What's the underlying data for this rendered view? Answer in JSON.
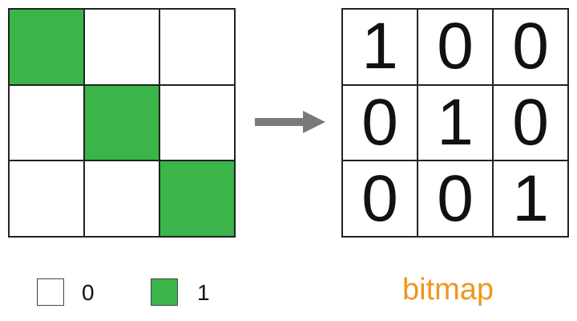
{
  "colors": {
    "on": "#3bb54a",
    "off": "#ffffff",
    "caption": "#f0961e",
    "arrow": "#7a7a7a"
  },
  "grid": [
    [
      1,
      0,
      0
    ],
    [
      0,
      1,
      0
    ],
    [
      0,
      0,
      1
    ]
  ],
  "bitmap": [
    [
      "1",
      "0",
      "0"
    ],
    [
      "0",
      "1",
      "0"
    ],
    [
      "0",
      "0",
      "1"
    ]
  ],
  "legend": [
    {
      "label": "0",
      "value": 0
    },
    {
      "label": "1",
      "value": 1
    }
  ],
  "caption": "bitmap",
  "arrow_icon": "right-arrow-icon"
}
